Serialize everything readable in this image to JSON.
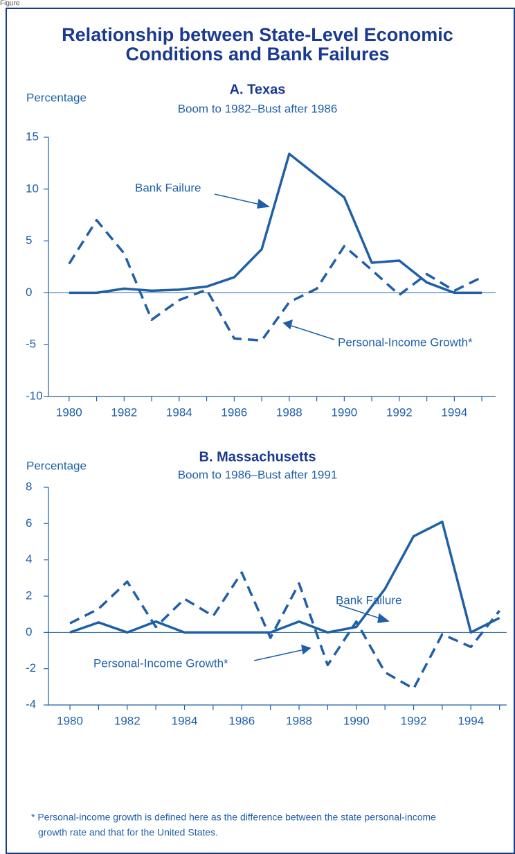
{
  "figure_label": "Figure",
  "title": [
    "Relationship between State-Level Economic",
    "Conditions and Bank Failures"
  ],
  "footnote": [
    "* Personal-income growth is defined here as the difference between the state personal-income",
    "growth rate and that for the United States."
  ],
  "chart_data": [
    {
      "type": "line",
      "title": "A. Texas",
      "subtitle": "Boom to 1982–Bust after 1986",
      "ylabel": "Percentage",
      "x": [
        1980,
        1981,
        1982,
        1983,
        1984,
        1985,
        1986,
        1987,
        1988,
        1989,
        1990,
        1991,
        1992,
        1993,
        1994,
        1995
      ],
      "xlim": [
        1979.25,
        1995.5
      ],
      "xticks": [
        1980,
        1982,
        1984,
        1986,
        1988,
        1990,
        1992,
        1994
      ],
      "ylim": [
        -10,
        15
      ],
      "yticks": [
        -10,
        -5,
        0,
        5,
        10,
        15
      ],
      "series": [
        {
          "name": "Bank Failure",
          "color": "#1f5fa8",
          "style": "solid",
          "values": [
            0,
            0,
            0.4,
            0.2,
            0.3,
            0.6,
            1.5,
            4.2,
            13.4,
            11.3,
            9.2,
            2.9,
            3.1,
            1.0,
            0,
            0
          ]
        },
        {
          "name": "Personal-Income Growth*",
          "color": "#1f5fa8",
          "style": "dashed",
          "values": [
            2.8,
            7.0,
            3.8,
            -2.6,
            -0.7,
            0.3,
            -4.4,
            -4.6,
            -0.9,
            0.4,
            4.5,
            2.2,
            -0.2,
            1.8,
            0.2,
            1.5
          ]
        }
      ]
    },
    {
      "type": "line",
      "title": "B. Massachusetts",
      "subtitle": "Boom to 1986–Bust after 1991",
      "ylabel": "Percentage",
      "x": [
        1980,
        1981,
        1982,
        1983,
        1984,
        1985,
        1986,
        1987,
        1988,
        1989,
        1990,
        1991,
        1992,
        1993,
        1994,
        1995
      ],
      "xlim": [
        1979.25,
        1995.25
      ],
      "xticks": [
        1980,
        1982,
        1984,
        1986,
        1988,
        1990,
        1992,
        1994
      ],
      "ylim": [
        -4,
        8
      ],
      "yticks": [
        -4,
        -2,
        0,
        2,
        4,
        6,
        8
      ],
      "series": [
        {
          "name": "Bank Failure",
          "color": "#1f5fa8",
          "style": "solid",
          "values": [
            0,
            0.55,
            0,
            0.6,
            0,
            0,
            0,
            0,
            0.6,
            0,
            0.3,
            2.4,
            5.3,
            6.1,
            0,
            0.8
          ]
        },
        {
          "name": "Personal-Income Growth*",
          "color": "#1f5fa8",
          "style": "dashed",
          "values": [
            0.5,
            1.3,
            2.8,
            0.3,
            1.85,
            0.9,
            3.3,
            -0.3,
            2.7,
            -1.8,
            0.6,
            -2.2,
            -3.1,
            -0.1,
            -0.8,
            1.2
          ]
        }
      ]
    }
  ]
}
